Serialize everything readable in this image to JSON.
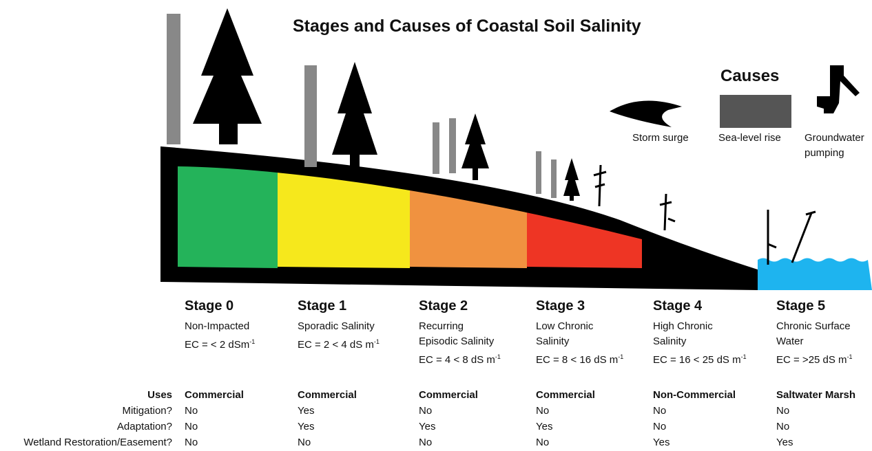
{
  "title": "Stages and Causes of Coastal Soil Salinity",
  "causes": {
    "heading": "Causes",
    "items": [
      "Storm surge",
      "Sea-level rise",
      "Groundwater pumping"
    ]
  },
  "row_labels": [
    "Uses",
    "Mitigation?",
    "Adaptation?",
    "Wetland Restoration/Easement?"
  ],
  "stages": [
    {
      "name": "Stage 0",
      "description": [
        "Non-Impacted"
      ],
      "ec": "EC = < 2 dSm",
      "ec_exponent": "-1",
      "uses": "Commercial",
      "mitigation": "No",
      "adaptation": "No",
      "wetland": "No"
    },
    {
      "name": "Stage 1",
      "description": [
        "Sporadic Salinity"
      ],
      "ec": "EC = 2 < 4 dS m",
      "ec_exponent": "-1",
      "uses": "Commercial",
      "mitigation": "Yes",
      "adaptation": "Yes",
      "wetland": "No"
    },
    {
      "name": "Stage 2",
      "description": [
        "Recurring",
        "Episodic Salinity"
      ],
      "ec": "EC = 4 < 8 dS m",
      "ec_exponent": "-1",
      "uses": "Commercial",
      "mitigation": "No",
      "adaptation": "Yes",
      "wetland": "No"
    },
    {
      "name": "Stage 3",
      "description": [
        "Low Chronic",
        "Salinity"
      ],
      "ec": "EC = 8 < 16 dS m",
      "ec_exponent": "-1",
      "uses": "Commercial",
      "mitigation": "No",
      "adaptation": "Yes",
      "wetland": "No"
    },
    {
      "name": "Stage 4",
      "description": [
        "High Chronic",
        "Salinity"
      ],
      "ec": "EC = 16 < 25 dS m",
      "ec_exponent": "-1",
      "uses": "Non-Commercial",
      "mitigation": "No",
      "adaptation": "No",
      "wetland": "Yes"
    },
    {
      "name": "Stage 5",
      "description": [
        "Chronic Surface",
        "Water"
      ],
      "ec": "EC = >25 dS m",
      "ec_exponent": "-1",
      "uses": "Saltwater Marsh",
      "mitigation": "No",
      "adaptation": "No",
      "wetland": "Yes"
    }
  ]
}
